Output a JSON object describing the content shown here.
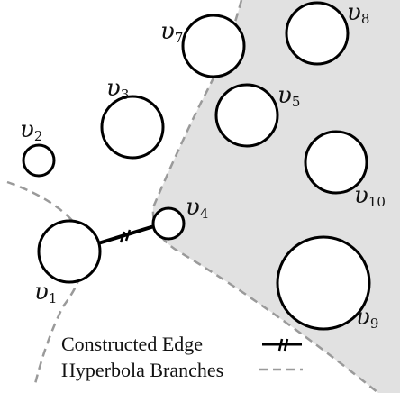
{
  "nodes": [
    {
      "id": "v1",
      "symbol": "υ",
      "subscript": "1"
    },
    {
      "id": "v2",
      "symbol": "υ",
      "subscript": "2"
    },
    {
      "id": "v3",
      "symbol": "υ",
      "subscript": "3"
    },
    {
      "id": "v4",
      "symbol": "υ",
      "subscript": "4"
    },
    {
      "id": "v5",
      "symbol": "υ",
      "subscript": "5"
    },
    {
      "id": "v7",
      "symbol": "υ",
      "subscript": "7"
    },
    {
      "id": "v8",
      "symbol": "υ",
      "subscript": "8"
    },
    {
      "id": "v9",
      "symbol": "υ",
      "subscript": "9"
    },
    {
      "id": "v10",
      "symbol": "υ",
      "subscript": "10"
    }
  ],
  "legend": {
    "constructed_edge": "Constructed Edge",
    "hyperbola_branches": "Hyperbola Branches"
  },
  "colors": {
    "region_fill": "#e1e1e1",
    "hyperbola": "#9a9a9a",
    "edge": "#000000"
  }
}
